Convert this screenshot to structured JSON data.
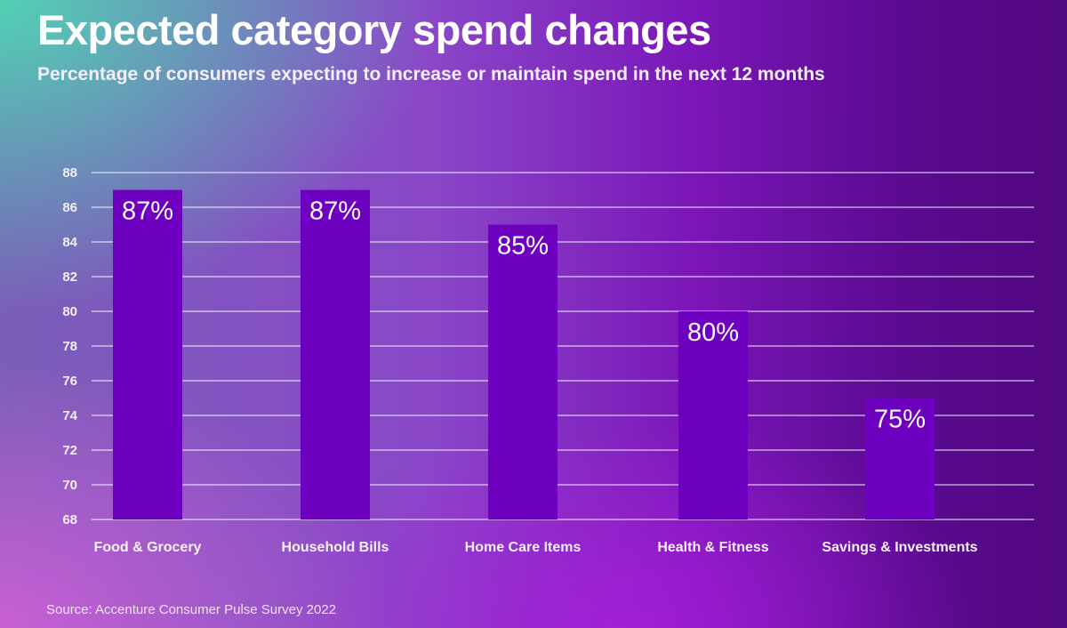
{
  "chart_data": {
    "type": "bar",
    "title": "Expected category spend changes",
    "subtitle": "Percentage of consumers expecting to increase or maintain spend in the next 12 months",
    "categories": [
      "Food & Grocery",
      "Household Bills",
      "Home Care Items",
      "Health & Fitness",
      "Savings & Investments"
    ],
    "values": [
      87,
      87,
      85,
      80,
      75
    ],
    "data_labels": [
      "87%",
      "87%",
      "85%",
      "80%",
      "75%"
    ],
    "xlabel": "",
    "ylabel": "",
    "ylim": [
      68,
      88
    ],
    "yticks": [
      68,
      70,
      72,
      74,
      76,
      78,
      80,
      82,
      84,
      86,
      88
    ],
    "grid": true,
    "legend": "none",
    "bar_color": "#6e00c0",
    "source": "Source: Accenture Consumer Pulse Survey 2022"
  }
}
